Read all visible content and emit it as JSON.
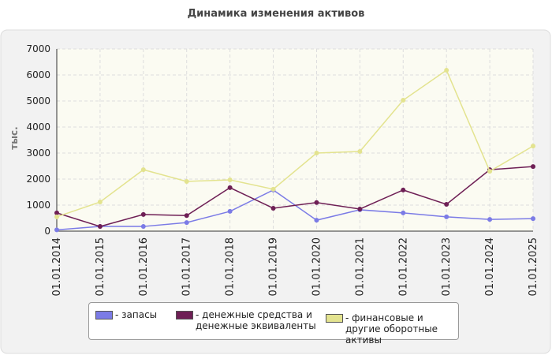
{
  "chart_data": {
    "type": "line",
    "title": "Динамика изменения активов",
    "y_label": "тыс.",
    "categories": [
      "01.01.2014",
      "01.01.2015",
      "01.01.2016",
      "01.01.2017",
      "01.01.2018",
      "01.01.2019",
      "01.01.2020",
      "01.01.2021",
      "01.01.2022",
      "01.01.2023",
      "01.01.2024",
      "01.01.2025"
    ],
    "series": [
      {
        "name": "- запасы",
        "color": "#7b7be6",
        "values": [
          50,
          180,
          180,
          330,
          760,
          1580,
          420,
          820,
          700,
          550,
          450,
          480
        ]
      },
      {
        "name": "- денежные средства и денежные эквиваленты",
        "color": "#6e1f55",
        "values": [
          700,
          180,
          640,
          600,
          1670,
          880,
          1100,
          850,
          1580,
          1030,
          2360,
          2480
        ]
      },
      {
        "name": "- финансовые и другие оборотные активы",
        "color": "#e3e38f",
        "values": [
          550,
          1120,
          2360,
          1910,
          1970,
          1610,
          3000,
          3060,
          5030,
          6180,
          2300,
          3270
        ]
      }
    ],
    "ylim": [
      0,
      7000
    ],
    "yticks": [
      0,
      1000,
      2000,
      3000,
      4000,
      5000,
      6000,
      7000
    ],
    "grid": true
  }
}
